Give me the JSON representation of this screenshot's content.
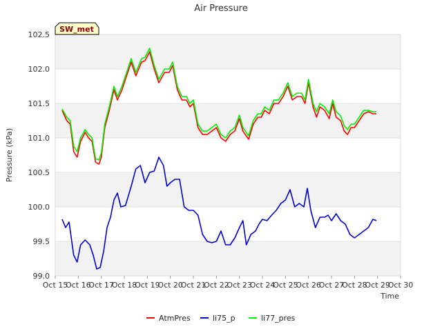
{
  "chart_data": {
    "type": "line",
    "title": "Air Pressure",
    "xlabel": "Time",
    "ylabel": "Pressure (kPa)",
    "ylim": [
      99.0,
      102.5
    ],
    "yticks": [
      "99.0",
      "99.5",
      "100.0",
      "100.5",
      "101.0",
      "101.5",
      "102.0",
      "102.5"
    ],
    "xlim": [
      15,
      30
    ],
    "xticks": [
      "Oct 15",
      "Oct 16",
      "Oct 17",
      "Oct 18",
      "Oct 19",
      "Oct 20",
      "Oct 21",
      "Oct 22",
      "Oct 23",
      "Oct 24",
      "Oct 25",
      "Oct 26",
      "Oct 27",
      "Oct 28",
      "Oct 29",
      "Oct 30"
    ],
    "badge": "SW_met",
    "grid": "horizontal bands",
    "legend_position": "bottom-center",
    "series": [
      {
        "name": "AtmPres",
        "color": "#ff0000",
        "x": [
          15.3,
          15.5,
          15.65,
          15.8,
          15.95,
          16.1,
          16.3,
          16.45,
          16.6,
          16.75,
          16.9,
          17.0,
          17.15,
          17.35,
          17.55,
          17.7,
          17.9,
          18.1,
          18.3,
          18.5,
          18.75,
          18.9,
          19.1,
          19.3,
          19.5,
          19.75,
          19.95,
          20.1,
          20.3,
          20.5,
          20.7,
          20.85,
          21.0,
          21.2,
          21.4,
          21.6,
          21.8,
          22.0,
          22.2,
          22.4,
          22.6,
          22.8,
          23.0,
          23.15,
          23.4,
          23.6,
          23.8,
          23.95,
          24.1,
          24.3,
          24.5,
          24.7,
          24.9,
          25.1,
          25.3,
          25.5,
          25.7,
          25.85,
          26.0,
          26.2,
          26.35,
          26.5,
          26.7,
          26.9,
          27.05,
          27.2,
          27.4,
          27.55,
          27.7,
          27.85,
          28.0,
          28.2,
          28.4,
          28.6,
          28.8,
          28.95
        ],
        "values": [
          101.4,
          101.25,
          101.2,
          100.8,
          100.72,
          100.95,
          101.08,
          101.0,
          100.95,
          100.65,
          100.62,
          100.72,
          101.15,
          101.4,
          101.7,
          101.55,
          101.7,
          101.9,
          102.1,
          101.9,
          102.1,
          102.12,
          102.25,
          102.0,
          101.8,
          101.95,
          101.95,
          102.05,
          101.7,
          101.55,
          101.55,
          101.45,
          101.5,
          101.15,
          101.05,
          101.05,
          101.1,
          101.15,
          101.0,
          100.95,
          101.05,
          101.1,
          101.28,
          101.1,
          100.98,
          101.2,
          101.3,
          101.3,
          101.4,
          101.35,
          101.5,
          101.5,
          101.6,
          101.75,
          101.55,
          101.6,
          101.6,
          101.5,
          101.8,
          101.45,
          101.3,
          101.45,
          101.4,
          101.28,
          101.5,
          101.3,
          101.25,
          101.1,
          101.05,
          101.15,
          101.15,
          101.25,
          101.35,
          101.38,
          101.35,
          101.35
        ]
      },
      {
        "name": "li75_p",
        "color": "#0000cc",
        "x": [
          15.3,
          15.45,
          15.6,
          15.8,
          15.95,
          16.1,
          16.3,
          16.5,
          16.65,
          16.8,
          16.95,
          17.1,
          17.25,
          17.4,
          17.55,
          17.7,
          17.85,
          18.05,
          18.3,
          18.5,
          18.7,
          18.9,
          19.1,
          19.3,
          19.5,
          19.7,
          19.85,
          20.0,
          20.2,
          20.4,
          20.6,
          20.8,
          21.0,
          21.2,
          21.4,
          21.6,
          21.8,
          22.0,
          22.2,
          22.4,
          22.6,
          22.8,
          23.0,
          23.15,
          23.3,
          23.5,
          23.7,
          23.85,
          24.0,
          24.2,
          24.4,
          24.6,
          24.8,
          25.0,
          25.2,
          25.4,
          25.6,
          25.8,
          25.95,
          26.1,
          26.3,
          26.5,
          26.7,
          26.85,
          27.0,
          27.2,
          27.4,
          27.6,
          27.8,
          28.0,
          28.2,
          28.4,
          28.6,
          28.8,
          28.95
        ],
        "values": [
          99.82,
          99.7,
          99.78,
          99.3,
          99.2,
          99.45,
          99.52,
          99.45,
          99.3,
          99.1,
          99.12,
          99.35,
          99.7,
          99.85,
          100.1,
          100.2,
          100.0,
          100.02,
          100.3,
          100.55,
          100.6,
          100.35,
          100.5,
          100.52,
          100.72,
          100.6,
          100.3,
          100.35,
          100.4,
          100.4,
          100.0,
          99.95,
          99.95,
          99.88,
          99.6,
          99.5,
          99.48,
          99.5,
          99.65,
          99.45,
          99.45,
          99.55,
          99.7,
          99.8,
          99.45,
          99.6,
          99.65,
          99.75,
          99.82,
          99.8,
          99.88,
          99.95,
          100.05,
          100.1,
          100.25,
          100.0,
          100.05,
          100.0,
          100.27,
          99.95,
          99.7,
          99.85,
          99.85,
          99.88,
          99.8,
          99.9,
          99.8,
          99.75,
          99.6,
          99.55,
          99.6,
          99.65,
          99.7,
          99.82,
          99.8
        ]
      },
      {
        "name": "li77_pres",
        "color": "#00ee00",
        "x": [
          15.3,
          15.5,
          15.65,
          15.8,
          15.95,
          16.1,
          16.3,
          16.45,
          16.6,
          16.75,
          16.9,
          17.0,
          17.15,
          17.35,
          17.55,
          17.7,
          17.9,
          18.1,
          18.3,
          18.5,
          18.75,
          18.9,
          19.1,
          19.3,
          19.5,
          19.75,
          19.95,
          20.1,
          20.3,
          20.5,
          20.7,
          20.85,
          21.0,
          21.2,
          21.4,
          21.6,
          21.8,
          22.0,
          22.2,
          22.4,
          22.6,
          22.8,
          23.0,
          23.15,
          23.4,
          23.6,
          23.8,
          23.95,
          24.1,
          24.3,
          24.5,
          24.7,
          24.9,
          25.1,
          25.3,
          25.5,
          25.7,
          25.85,
          26.0,
          26.2,
          26.35,
          26.5,
          26.7,
          26.9,
          27.05,
          27.2,
          27.4,
          27.55,
          27.7,
          27.85,
          28.0,
          28.2,
          28.4,
          28.6,
          28.8,
          28.95
        ],
        "values": [
          101.42,
          101.3,
          101.25,
          100.88,
          100.8,
          101.0,
          101.12,
          101.05,
          101.0,
          100.7,
          100.68,
          100.78,
          101.2,
          101.45,
          101.75,
          101.6,
          101.75,
          101.95,
          102.15,
          101.95,
          102.15,
          102.17,
          102.3,
          102.05,
          101.85,
          102.0,
          102.0,
          102.1,
          101.75,
          101.6,
          101.6,
          101.5,
          101.55,
          101.2,
          101.1,
          101.1,
          101.15,
          101.2,
          101.05,
          101.0,
          101.1,
          101.15,
          101.33,
          101.15,
          101.03,
          101.25,
          101.35,
          101.35,
          101.45,
          101.4,
          101.55,
          101.55,
          101.65,
          101.8,
          101.6,
          101.65,
          101.65,
          101.55,
          101.85,
          101.5,
          101.38,
          101.5,
          101.45,
          101.35,
          101.55,
          101.38,
          101.32,
          101.18,
          101.12,
          101.2,
          101.2,
          101.3,
          101.4,
          101.4,
          101.38,
          101.38
        ]
      }
    ]
  }
}
